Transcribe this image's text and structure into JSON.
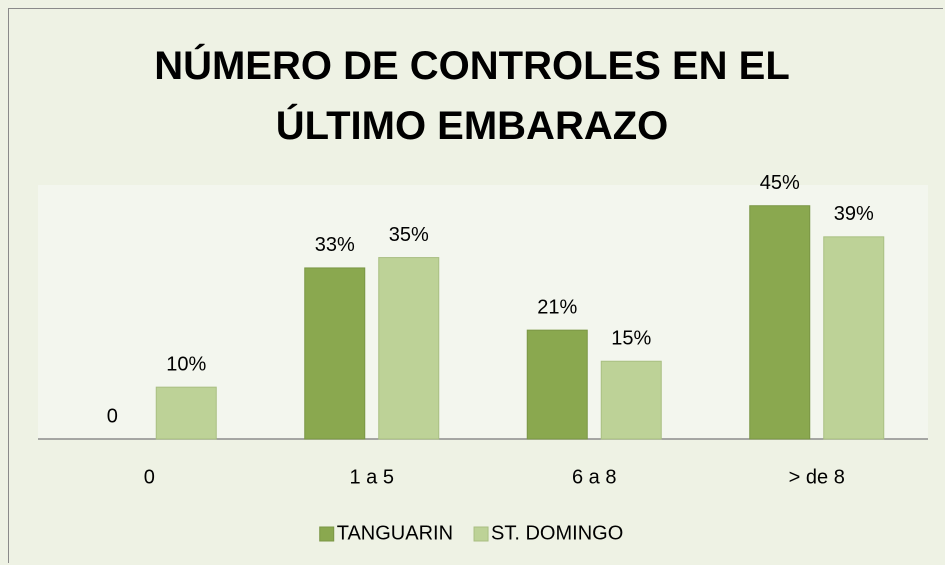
{
  "chart_data": {
    "type": "bar",
    "title": "NÚMERO DE CONTROLES EN EL ÚLTIMO EMBARAZO",
    "categories": [
      "0",
      "1 a 5",
      "6 a 8",
      "> de 8"
    ],
    "series": [
      {
        "name": "TANGUARIN",
        "color": "#8aa84f",
        "values": [
          0,
          33,
          21,
          45
        ],
        "value_labels": [
          "0",
          "33%",
          "21%",
          "45%"
        ]
      },
      {
        "name": "ST. DOMINGO",
        "color": "#bdd297",
        "values": [
          10,
          35,
          15,
          39
        ],
        "value_labels": [
          "10%",
          "35%",
          "15%",
          "39%"
        ]
      }
    ],
    "ylim": [
      0,
      49
    ],
    "legend": "bottom"
  }
}
